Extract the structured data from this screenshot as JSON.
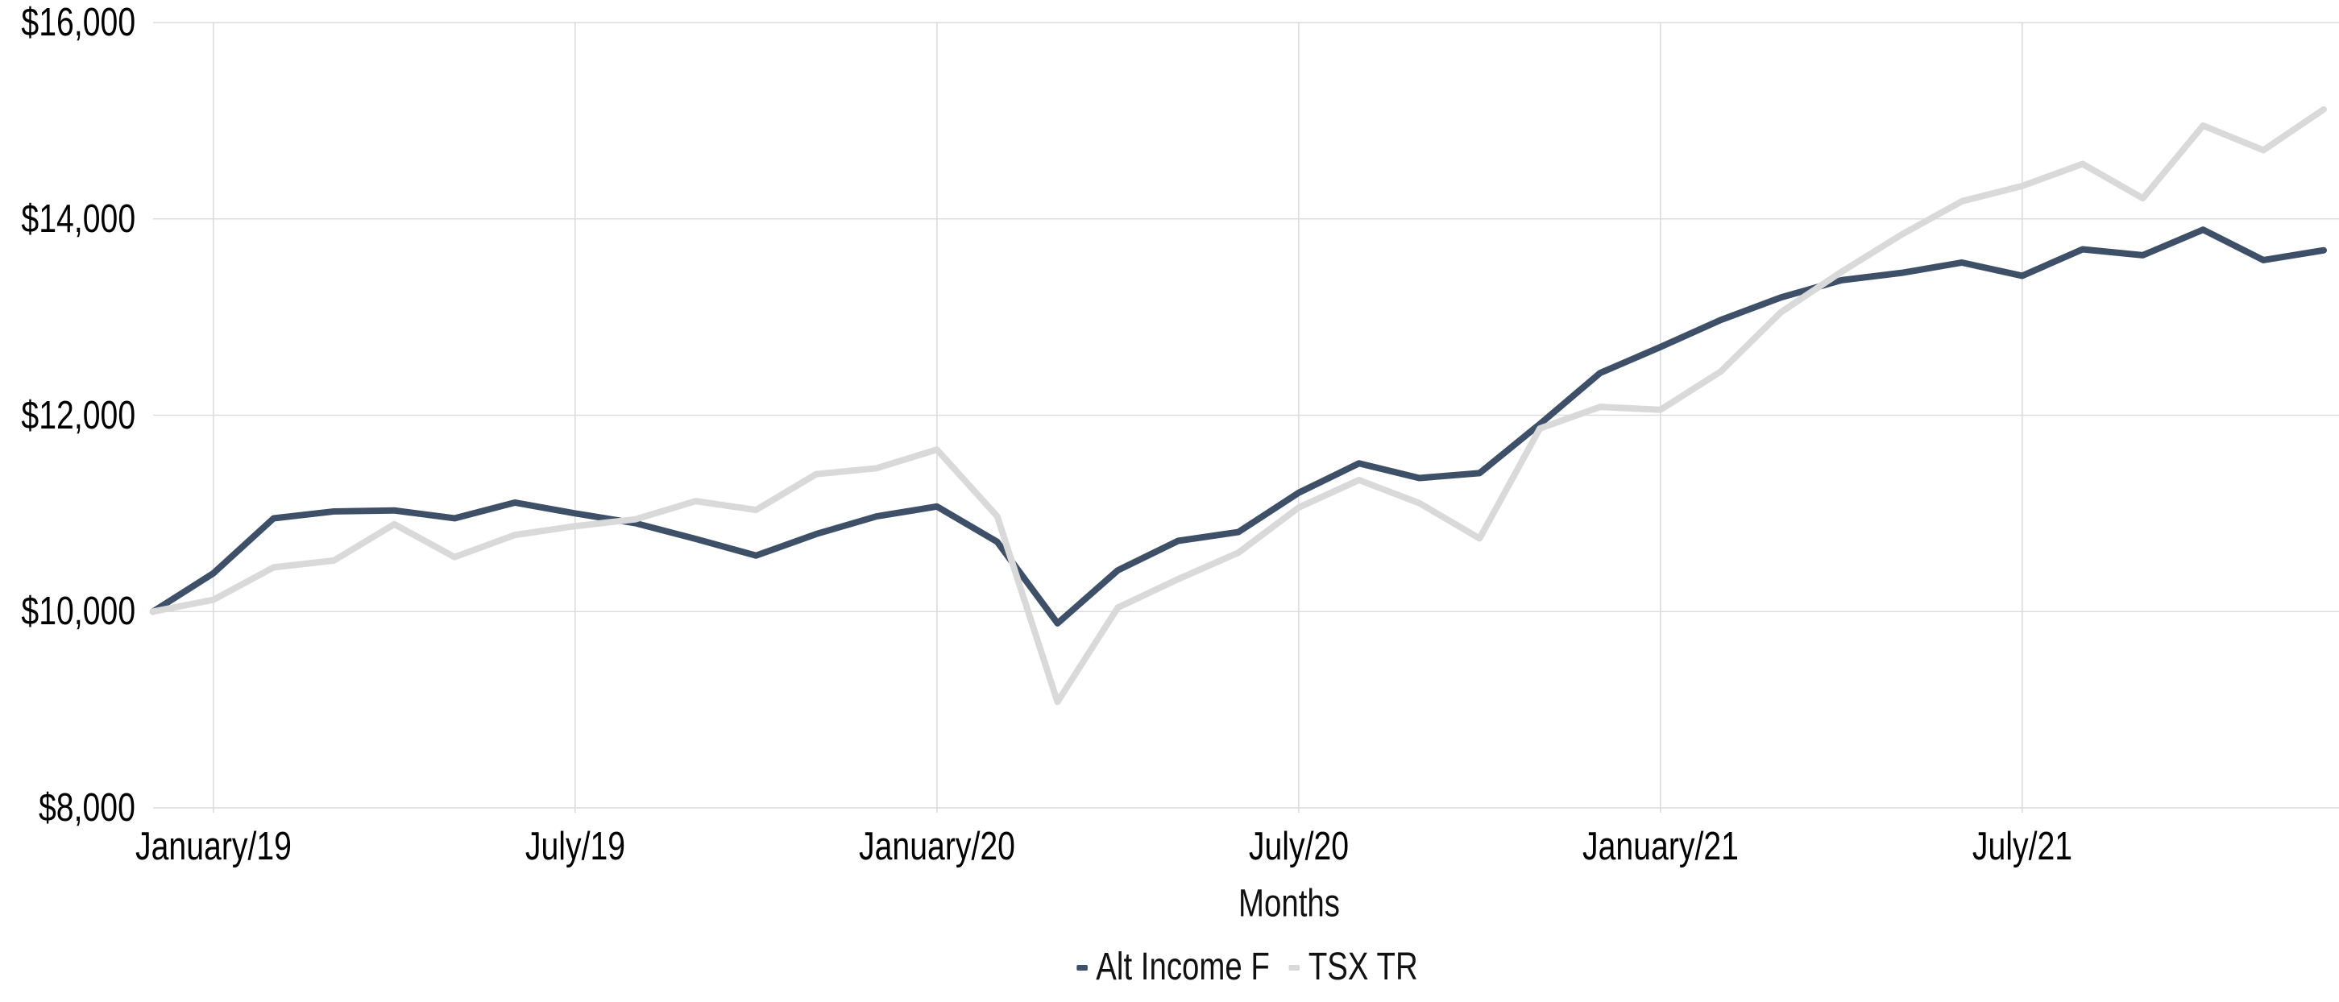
{
  "chart_data": {
    "type": "line",
    "title": "",
    "xlabel": "Months",
    "ylabel": "",
    "grid": true,
    "legend_position": "bottom-center",
    "ylim": [
      8000,
      16000
    ],
    "y_ticks": [
      16000,
      14000,
      12000,
      10000,
      8000
    ],
    "y_tick_labels": [
      "$16,000",
      "$14,000",
      "$12,000",
      "$10,000",
      "$8,000"
    ],
    "x_tick_labels": [
      "January/19",
      "July/19",
      "January/20",
      "July/20",
      "January/21",
      "July/21"
    ],
    "x_tick_indices": [
      1,
      7,
      13,
      19,
      25,
      31
    ],
    "x": [
      "Dec/18",
      "Jan/19",
      "Feb/19",
      "Mar/19",
      "Apr/19",
      "May/19",
      "Jun/19",
      "Jul/19",
      "Aug/19",
      "Sep/19",
      "Oct/19",
      "Nov/19",
      "Dec/19",
      "Jan/20",
      "Feb/20",
      "Mar/20",
      "Apr/20",
      "May/20",
      "Jun/20",
      "Jul/20",
      "Aug/20",
      "Sep/20",
      "Oct/20",
      "Nov/20",
      "Dec/20",
      "Jan/21",
      "Feb/21",
      "Mar/21",
      "Apr/21",
      "May/21",
      "Jun/21",
      "Jul/21",
      "Aug/21",
      "Sep/21",
      "Oct/21",
      "Nov/21",
      "Dec/21"
    ],
    "series": [
      {
        "name": "Alt Income F",
        "color": "#3E4F68",
        "values": [
          10000,
          10390,
          10950,
          11020,
          11030,
          10950,
          11110,
          11000,
          10900,
          10740,
          10570,
          10790,
          10970,
          11070,
          10710,
          9880,
          10420,
          10720,
          10810,
          11210,
          11510,
          11360,
          11410,
          11910,
          12430,
          12695,
          12970,
          13200,
          13375,
          13450,
          13555,
          13420,
          13690,
          13630,
          13890,
          13580,
          13680
        ]
      },
      {
        "name": "TSX TR",
        "color": "#D9D9D9",
        "values": [
          10000,
          10120,
          10450,
          10520,
          10890,
          10555,
          10780,
          10870,
          10940,
          11125,
          11035,
          11400,
          11460,
          11650,
          10970,
          9080,
          10040,
          10330,
          10600,
          11060,
          11340,
          11105,
          10745,
          11865,
          12085,
          12055,
          12445,
          13050,
          13460,
          13840,
          14180,
          14335,
          14560,
          14210,
          14950,
          14700,
          15115
        ]
      }
    ]
  },
  "colors": {
    "background": "#FFFFFF",
    "grid": "#DCDCDC",
    "tick_text": "#000000",
    "series_1": "#3E4F68",
    "series_2": "#D9D9D9"
  }
}
